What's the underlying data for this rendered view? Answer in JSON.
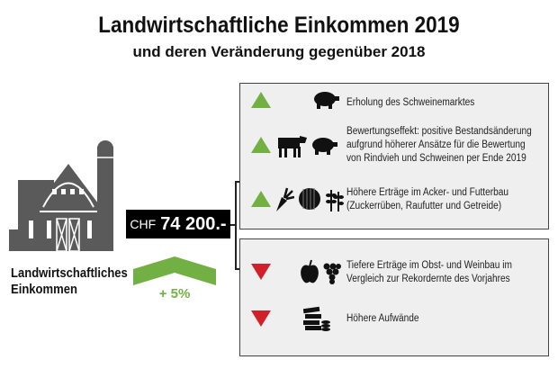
{
  "title": "Landwirtschaftliche Einkommen 2019",
  "subtitle": "und deren Veränderung gegenüber 2018",
  "income": {
    "currency": "CHF",
    "value": "74 200.-",
    "label_line1": "Landwirtschaftliches",
    "label_line2": "Einkommen",
    "change": "+ 5%"
  },
  "colors": {
    "positive": "#72b043",
    "negative": "#d0202a",
    "icon": "#111111",
    "barn": "#5a5a5a"
  },
  "positive_factors": [
    {
      "icons": [
        "pig-icon"
      ],
      "lines": [
        "Erholung des Schweinemarktes"
      ]
    },
    {
      "icons": [
        "cow-icon",
        "pig-icon"
      ],
      "lines": [
        "Bewertungseffekt: positive Bestandsänderung",
        "aufgrund höherer Ansätze für die Bewertung",
        "von Rindvieh und Schweinen per Ende 2019"
      ]
    },
    {
      "icons": [
        "sugar-beet-icon",
        "hay-bale-icon",
        "grain-icon"
      ],
      "lines": [
        "Höhere Erträge im Acker- und Futterbau",
        "(Zuckerrüben, Raufutter und Getreide)"
      ]
    }
  ],
  "negative_factors": [
    {
      "icons": [
        "apple-icon",
        "grapes-icon"
      ],
      "lines": [
        "Tiefere Erträge im Obst- und Weinbau im",
        "Vergleich zur Rekordernte des Vorjahres"
      ]
    },
    {
      "icons": [
        "money-icon"
      ],
      "lines": [
        "Höhere Aufwände"
      ]
    }
  ]
}
